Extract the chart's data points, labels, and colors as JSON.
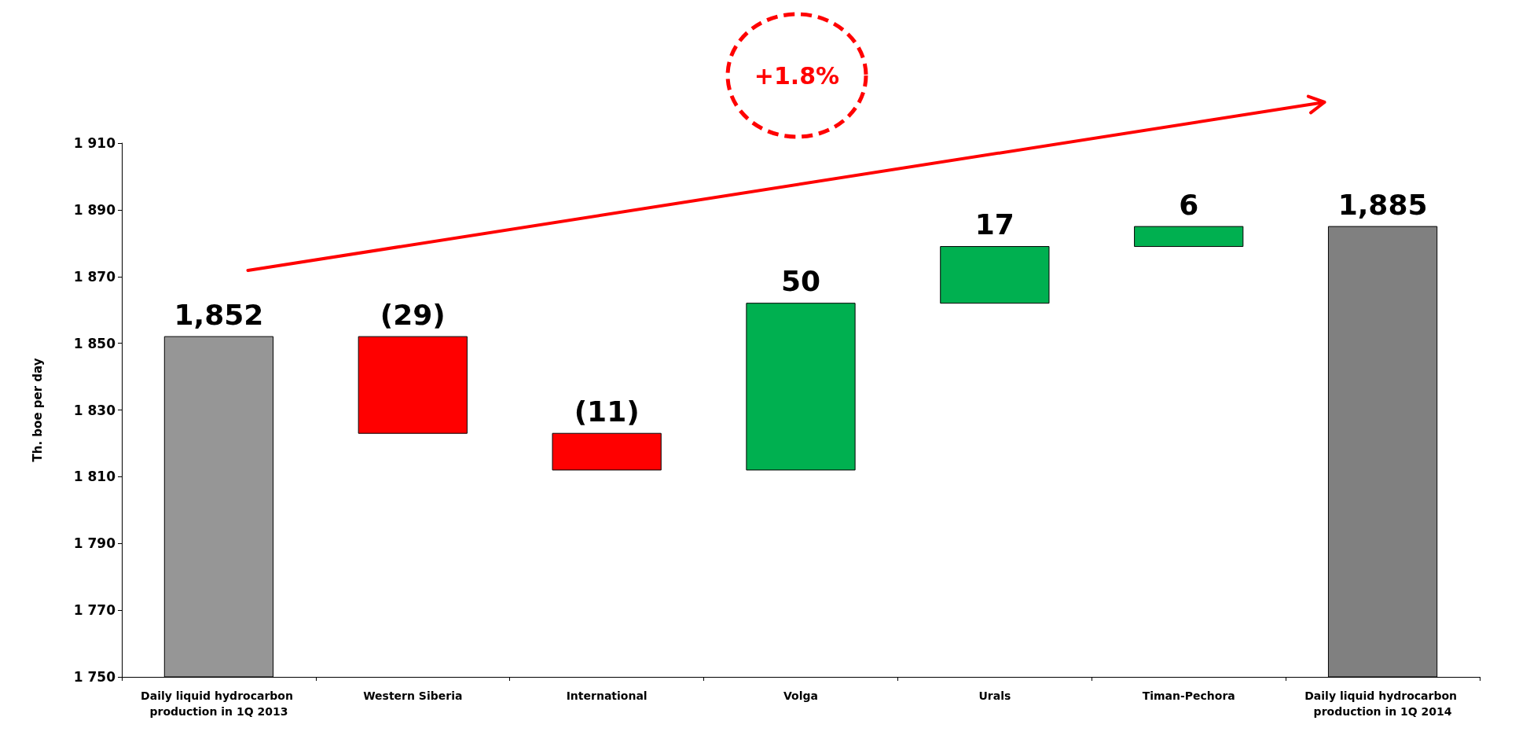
{
  "chart_data": {
    "type": "bar",
    "ylabel": "Th. boe per day",
    "categories": [
      "Daily liquid hydrocarbon production in 1Q 2013",
      "Western Siberia",
      "International",
      "Volga",
      "Urals",
      "Timan-Pechora",
      "Daily liquid hydrocarbon production in 1Q 2014"
    ],
    "values": [
      1852,
      -29,
      -11,
      50,
      17,
      6,
      1885
    ],
    "base": [
      null,
      1852,
      1823,
      1812,
      1862,
      1879,
      null
    ],
    "colors": [
      "#969696",
      "#ff0000",
      "#ff0000",
      "#00b050",
      "#00b050",
      "#00b050",
      "#808080"
    ],
    "value_labels": [
      "1,852",
      "(29)",
      "(11)",
      "50",
      "17",
      "6",
      "1,885"
    ],
    "ylim": [
      1750,
      1910
    ],
    "yticks": [
      {
        "value": 1750,
        "label": "1 750"
      },
      {
        "value": 1770,
        "label": "1 770"
      },
      {
        "value": 1790,
        "label": "1 790"
      },
      {
        "value": 1810,
        "label": "1 810"
      },
      {
        "value": 1830,
        "label": "1 830"
      },
      {
        "value": 1850,
        "label": "1 850"
      },
      {
        "value": 1870,
        "label": "1 870"
      },
      {
        "value": 1890,
        "label": "1 890"
      },
      {
        "value": 1910,
        "label": "1 910"
      }
    ],
    "annotations": [
      "+1.8%"
    ],
    "grid": false
  }
}
